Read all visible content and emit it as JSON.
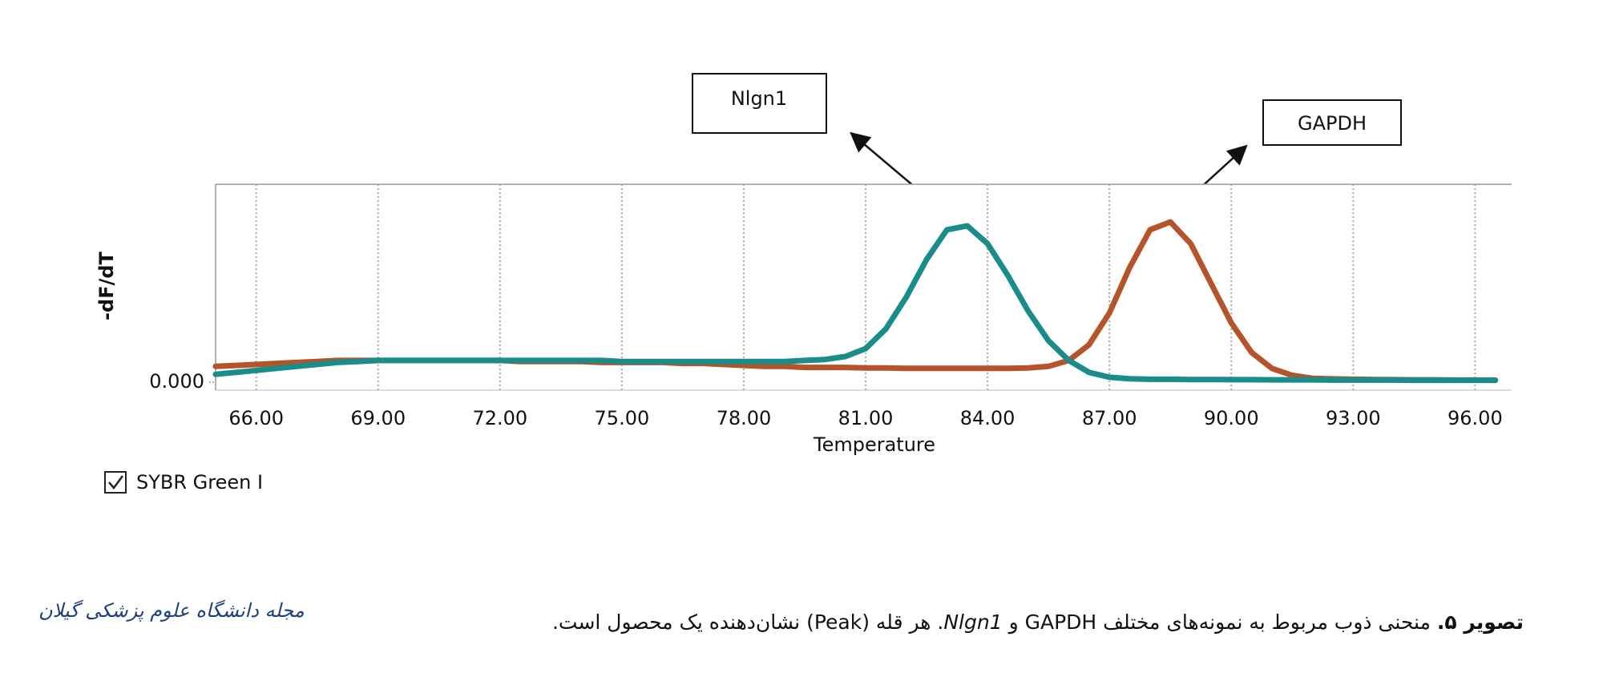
{
  "chart_data": {
    "type": "line",
    "y_label": "-dF/dT",
    "x_label": "Temperature",
    "x": [
      65,
      65.5,
      66,
      66.5,
      67,
      67.5,
      68,
      68.5,
      69,
      69.5,
      70,
      70.5,
      71,
      71.5,
      72,
      72.5,
      73,
      73.5,
      74,
      74.5,
      75,
      75.5,
      76,
      76.5,
      77,
      77.5,
      78,
      78.5,
      79,
      79.5,
      80,
      80.5,
      81,
      81.5,
      82,
      82.5,
      83,
      83.5,
      84,
      84.5,
      85,
      85.5,
      86,
      86.5,
      87,
      87.5,
      88,
      88.5,
      89,
      89.5,
      90,
      90.5,
      91,
      91.5,
      92,
      92.5,
      93,
      93.5,
      94,
      94.5,
      95,
      95.5,
      96,
      96.5
    ],
    "series": [
      {
        "name": "Nlgn1",
        "color": "#1a8c8a",
        "values": [
          0.04,
          0.05,
          0.06,
          0.07,
          0.08,
          0.09,
          0.1,
          0.105,
          0.11,
          0.11,
          0.11,
          0.11,
          0.11,
          0.11,
          0.11,
          0.11,
          0.11,
          0.11,
          0.11,
          0.11,
          0.105,
          0.105,
          0.105,
          0.105,
          0.105,
          0.105,
          0.105,
          0.105,
          0.105,
          0.11,
          0.115,
          0.13,
          0.17,
          0.27,
          0.43,
          0.62,
          0.77,
          0.79,
          0.7,
          0.54,
          0.36,
          0.21,
          0.11,
          0.05,
          0.025,
          0.018,
          0.015,
          0.015,
          0.014,
          0.014,
          0.013,
          0.013,
          0.012,
          0.012,
          0.012,
          0.011,
          0.011,
          0.011,
          0.011,
          0.01,
          0.01,
          0.01,
          0.01,
          0.01
        ]
      },
      {
        "name": "GAPDH",
        "color": "#b5532a",
        "values": [
          0.08,
          0.085,
          0.09,
          0.095,
          0.1,
          0.105,
          0.11,
          0.11,
          0.11,
          0.11,
          0.11,
          0.11,
          0.11,
          0.11,
          0.11,
          0.105,
          0.105,
          0.105,
          0.105,
          0.1,
          0.1,
          0.1,
          0.1,
          0.095,
          0.095,
          0.09,
          0.085,
          0.08,
          0.08,
          0.075,
          0.075,
          0.075,
          0.072,
          0.072,
          0.07,
          0.07,
          0.07,
          0.07,
          0.07,
          0.07,
          0.072,
          0.08,
          0.11,
          0.19,
          0.35,
          0.58,
          0.77,
          0.81,
          0.7,
          0.5,
          0.3,
          0.15,
          0.07,
          0.035,
          0.02,
          0.017,
          0.015,
          0.014,
          0.013,
          0.012,
          0.012,
          0.011,
          0.011,
          0.01
        ]
      }
    ],
    "xlim": [
      65.0,
      96.9
    ],
    "ylim": [
      -0.04,
      1.0
    ],
    "xticks": [
      {
        "value": 66,
        "label": "66.00"
      },
      {
        "value": 69,
        "label": "69.00"
      },
      {
        "value": 72,
        "label": "72.00"
      },
      {
        "value": 75,
        "label": "75.00"
      },
      {
        "value": 78,
        "label": "78.00"
      },
      {
        "value": 81,
        "label": "81.00"
      },
      {
        "value": 84,
        "label": "84.00"
      },
      {
        "value": 87,
        "label": "87.00"
      },
      {
        "value": 90,
        "label": "90.00"
      },
      {
        "value": 93,
        "label": "93.00"
      },
      {
        "value": 96,
        "label": "96.00"
      }
    ],
    "yticks": [
      {
        "value": 0,
        "label": "0.000"
      }
    ],
    "grid": true,
    "annotations": [
      "Nlgn1",
      "GAPDH"
    ],
    "legend": "SYBR Green I"
  },
  "caption": {
    "label": "تصویر ۵.",
    "text_before": "منحنی ذوب مربوط به نمونه‌های مختلف GAPDH و",
    "gene": "Nlgn1",
    "text_after": ". هر قله (Peak) نشان‌دهنده یک محصول است."
  },
  "logo": "مجله دانشگاه علوم پزشکی گیلان"
}
